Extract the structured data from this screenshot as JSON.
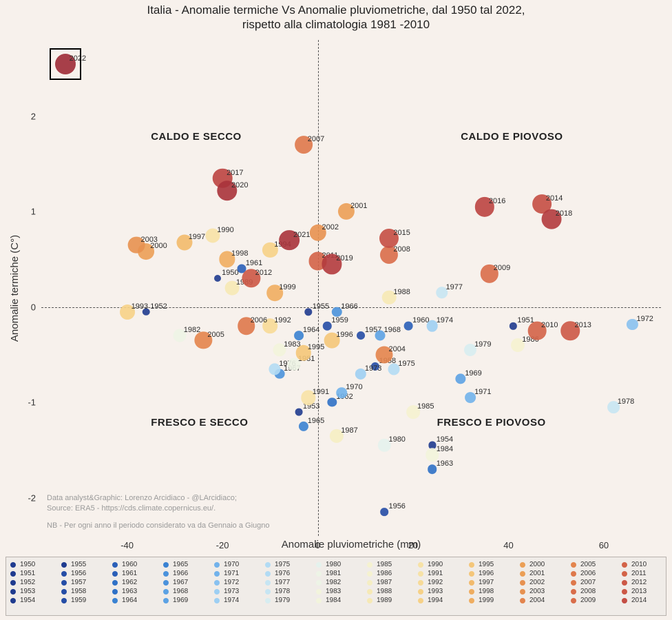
{
  "title_line1": "Italia - Anomalie termiche Vs Anomalie pluviometriche, dal 1950 tal 2022,",
  "title_line2": "rispetto alla climatologia 1981 -2010",
  "ylabel": "Anomalie termiche (C°)",
  "xlabel": "Anomalie pluviometriche (mm)",
  "credits_line1": "Data analyst&Graphic: Lorenzo Arcidiaco - @LArcidiaco;",
  "credits_line2": "Source: ERA5 - https://cds.climate.copernicus.eu/.",
  "note": "NB - Per ogni anno il periodo considerato va da Gennaio a Giugno",
  "quadrants": {
    "tl": "CALDO E SECCO",
    "tr": "CALDO E PIOVOSO",
    "bl": "FRESCO E SECCO",
    "br": "FRESCO E PIOVOSO"
  },
  "chart": {
    "xlim": [
      -58,
      72
    ],
    "ylim": [
      -2.4,
      2.8
    ],
    "xticks": [
      -40,
      -20,
      0,
      20,
      40,
      60
    ],
    "yticks": [
      -2,
      -1,
      0,
      1,
      2
    ],
    "background": "#f7f1ec",
    "grid_color": "#555555",
    "marker_min_r": 5,
    "marker_max_r": 15
  },
  "highlight_year": 2022,
  "points": [
    {
      "year": 1950,
      "x": -21,
      "y": 0.3,
      "c": "#1f3b8f"
    },
    {
      "year": 1951,
      "x": 41,
      "y": -0.2,
      "c": "#1f3b8f"
    },
    {
      "year": 1952,
      "x": -36,
      "y": -0.05,
      "c": "#1f3b8f"
    },
    {
      "year": 1953,
      "x": -4,
      "y": -1.1,
      "c": "#1f3b8f"
    },
    {
      "year": 1954,
      "x": 24,
      "y": -1.45,
      "c": "#1f3b8f"
    },
    {
      "year": 1955,
      "x": -2,
      "y": -0.05,
      "c": "#1f3b8f"
    },
    {
      "year": 1956,
      "x": 14,
      "y": -2.15,
      "c": "#254da6"
    },
    {
      "year": 1957,
      "x": 9,
      "y": -0.3,
      "c": "#254da6"
    },
    {
      "year": 1958,
      "x": 12,
      "y": -0.62,
      "c": "#254da6"
    },
    {
      "year": 1959,
      "x": 2,
      "y": -0.2,
      "c": "#254da6"
    },
    {
      "year": 1960,
      "x": 19,
      "y": -0.2,
      "c": "#2a5fb8"
    },
    {
      "year": 1961,
      "x": -16,
      "y": 0.4,
      "c": "#2a5fb8"
    },
    {
      "year": 1962,
      "x": 3,
      "y": -1.0,
      "c": "#2f71c7"
    },
    {
      "year": 1963,
      "x": 24,
      "y": -1.7,
      "c": "#2f71c7"
    },
    {
      "year": 1964,
      "x": -4,
      "y": -0.3,
      "c": "#3a82d2"
    },
    {
      "year": 1965,
      "x": -3,
      "y": -1.25,
      "c": "#3a82d2"
    },
    {
      "year": 1966,
      "x": 4,
      "y": -0.05,
      "c": "#4a92dc"
    },
    {
      "year": 1967,
      "x": -8,
      "y": -0.7,
      "c": "#4a92dc"
    },
    {
      "year": 1968,
      "x": 13,
      "y": -0.3,
      "c": "#5ca2e4"
    },
    {
      "year": 1969,
      "x": 30,
      "y": -0.75,
      "c": "#5ca2e4"
    },
    {
      "year": 1970,
      "x": 5,
      "y": -0.9,
      "c": "#71b2eb"
    },
    {
      "year": 1971,
      "x": 32,
      "y": -0.95,
      "c": "#71b2eb"
    },
    {
      "year": 1972,
      "x": 66,
      "y": -0.18,
      "c": "#88c1f0"
    },
    {
      "year": 1973,
      "x": 9,
      "y": -0.7,
      "c": "#9dcff3"
    },
    {
      "year": 1974,
      "x": 24,
      "y": -0.2,
      "c": "#9dcff3"
    },
    {
      "year": 1975,
      "x": 16,
      "y": -0.65,
      "c": "#b2dbf4"
    },
    {
      "year": 1976,
      "x": -9,
      "y": -0.65,
      "c": "#b2dbf4"
    },
    {
      "year": 1977,
      "x": 26,
      "y": 0.15,
      "c": "#c6e5f3"
    },
    {
      "year": 1978,
      "x": 62,
      "y": -1.05,
      "c": "#c6e5f3"
    },
    {
      "year": 1979,
      "x": 32,
      "y": -0.45,
      "c": "#d7edf1"
    },
    {
      "year": 1980,
      "x": 14,
      "y": -1.45,
      "c": "#e4f2ed"
    },
    {
      "year": 1981,
      "x": -5,
      "y": -0.6,
      "c": "#edf4e6"
    },
    {
      "year": 1982,
      "x": -29,
      "y": -0.3,
      "c": "#edf4e6"
    },
    {
      "year": 1983,
      "x": -8,
      "y": -0.45,
      "c": "#f2f4dc"
    },
    {
      "year": 1984,
      "x": 24,
      "y": -1.55,
      "c": "#f2f4dc"
    },
    {
      "year": 1985,
      "x": 20,
      "y": -1.1,
      "c": "#f5f2d0"
    },
    {
      "year": 1986,
      "x": 42,
      "y": -0.4,
      "c": "#f5f2d0"
    },
    {
      "year": 1987,
      "x": 4,
      "y": -1.35,
      "c": "#f5eec3"
    },
    {
      "year": 1988,
      "x": 15,
      "y": 0.1,
      "c": "#f6e9b5"
    },
    {
      "year": 1989,
      "x": -18,
      "y": 0.2,
      "c": "#f6e9b5"
    },
    {
      "year": 1990,
      "x": -22,
      "y": 0.75,
      "c": "#f7e2a6"
    },
    {
      "year": 1991,
      "x": -2,
      "y": -0.95,
      "c": "#f7e2a6"
    },
    {
      "year": 1992,
      "x": -10,
      "y": -0.2,
      "c": "#f7da97"
    },
    {
      "year": 1993,
      "x": -40,
      "y": -0.05,
      "c": "#f6d187"
    },
    {
      "year": 1994,
      "x": -10,
      "y": 0.6,
      "c": "#f6d187"
    },
    {
      "year": 1995,
      "x": -3,
      "y": -0.48,
      "c": "#f4c679"
    },
    {
      "year": 1996,
      "x": 3,
      "y": -0.35,
      "c": "#f4c679"
    },
    {
      "year": 1997,
      "x": -28,
      "y": 0.68,
      "c": "#f2ba6c"
    },
    {
      "year": 1998,
      "x": -19,
      "y": 0.5,
      "c": "#efad60"
    },
    {
      "year": 1999,
      "x": -9,
      "y": 0.15,
      "c": "#efad60"
    },
    {
      "year": 2000,
      "x": -36,
      "y": 0.58,
      "c": "#eb9f56"
    },
    {
      "year": 2001,
      "x": 6,
      "y": 1.0,
      "c": "#eb9f56"
    },
    {
      "year": 2002,
      "x": 0,
      "y": 0.78,
      "c": "#e79150"
    },
    {
      "year": 2003,
      "x": -38,
      "y": 0.65,
      "c": "#e79150"
    },
    {
      "year": 2004,
      "x": 14,
      "y": -0.5,
      "c": "#e3844d"
    },
    {
      "year": 2005,
      "x": -24,
      "y": -0.35,
      "c": "#e3844d"
    },
    {
      "year": 2006,
      "x": -15,
      "y": -0.2,
      "c": "#de784b"
    },
    {
      "year": 2007,
      "x": -3,
      "y": 1.7,
      "c": "#de784b"
    },
    {
      "year": 2008,
      "x": 15,
      "y": 0.55,
      "c": "#d96d4a"
    },
    {
      "year": 2009,
      "x": 36,
      "y": 0.35,
      "c": "#d96d4a"
    },
    {
      "year": 2010,
      "x": 46,
      "y": -0.25,
      "c": "#d36348"
    },
    {
      "year": 2011,
      "x": 0,
      "y": 0.48,
      "c": "#d36348"
    },
    {
      "year": 2012,
      "x": -14,
      "y": 0.3,
      "c": "#cc5846"
    },
    {
      "year": 2013,
      "x": 53,
      "y": -0.25,
      "c": "#cc5846"
    },
    {
      "year": 2014,
      "x": 47,
      "y": 1.08,
      "c": "#c44e44"
    },
    {
      "year": 2015,
      "x": 15,
      "y": 0.72,
      "c": "#c44e44"
    },
    {
      "year": 2016,
      "x": 35,
      "y": 1.05,
      "c": "#bb4441"
    },
    {
      "year": 2017,
      "x": -20,
      "y": 1.35,
      "c": "#bb4441"
    },
    {
      "year": 2018,
      "x": 49,
      "y": 0.92,
      "c": "#b23b3e"
    },
    {
      "year": 2019,
      "x": 3,
      "y": 0.45,
      "c": "#b23b3e"
    },
    {
      "year": 2020,
      "x": -19,
      "y": 1.22,
      "c": "#a8333b"
    },
    {
      "year": 2021,
      "x": -6,
      "y": 0.7,
      "c": "#a8333b"
    },
    {
      "year": 2022,
      "x": -53,
      "y": 2.55,
      "c": "#9d2b37"
    }
  ]
}
